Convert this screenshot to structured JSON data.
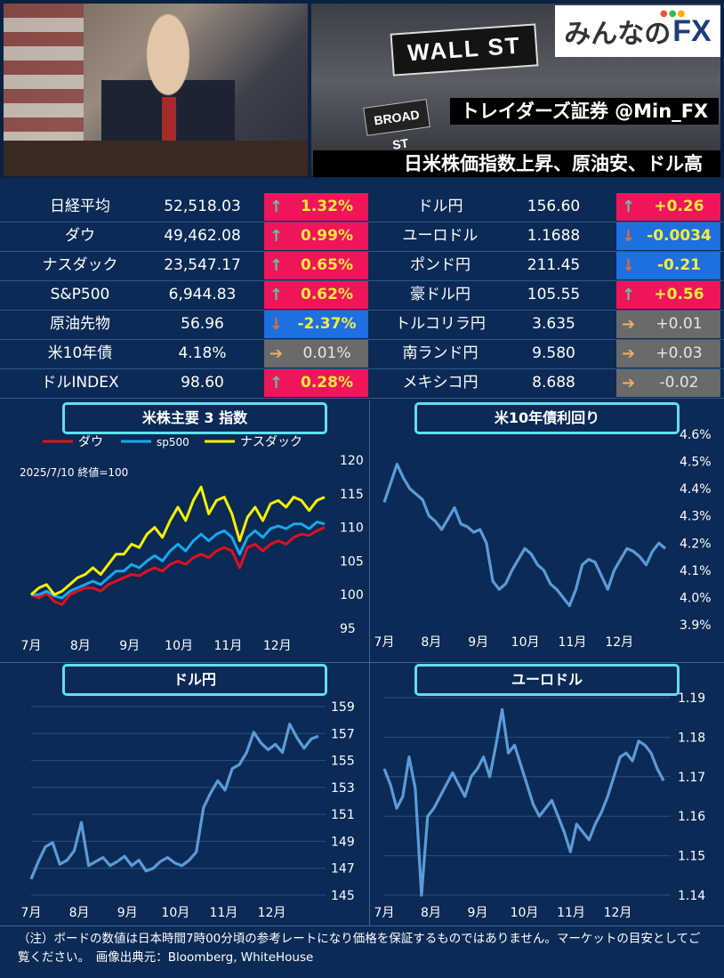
{
  "header": {
    "logo_text": "みんなの",
    "logo_fx": "FX",
    "caption_broker": "トレイダーズ証券 @Min_FX",
    "headline": "日米株価指数上昇、原油安、ドル高",
    "sign_wall": "WALL ST",
    "sign_broad": "BROAD ST"
  },
  "colors": {
    "up": "#f0155a",
    "down": "#1e6fe0",
    "flat": "#6a6a6a",
    "up_text": "#f7ec3a",
    "arrow_up": "#5dc8a0",
    "arrow_down": "#e86a2a",
    "arrow_flat": "#e8b060"
  },
  "left_rows": [
    {
      "name": "日経平均",
      "value": "52,518.03",
      "change": "1.32%",
      "dir": "up"
    },
    {
      "name": "ダウ",
      "value": "49,462.08",
      "change": "0.99%",
      "dir": "up"
    },
    {
      "name": "ナスダック",
      "value": "23,547.17",
      "change": "0.65%",
      "dir": "up"
    },
    {
      "name": "S&P500",
      "value": "6,944.83",
      "change": "0.62%",
      "dir": "up"
    },
    {
      "name": "原油先物",
      "value": "56.96",
      "change": "-2.37%",
      "dir": "down"
    },
    {
      "name": "米10年債",
      "value": "4.18%",
      "change": "0.01%",
      "dir": "flat"
    },
    {
      "name": "ドルINDEX",
      "value": "98.60",
      "change": "0.28%",
      "dir": "up"
    }
  ],
  "right_rows": [
    {
      "name": "ドル円",
      "value": "156.60",
      "change": "+0.26",
      "dir": "up"
    },
    {
      "name": "ユーロドル",
      "value": "1.1688",
      "change": "-0.0034",
      "dir": "down"
    },
    {
      "name": "ポンド円",
      "value": "211.45",
      "change": "-0.21",
      "dir": "down"
    },
    {
      "name": "豪ドル円",
      "value": "105.55",
      "change": "+0.56",
      "dir": "up"
    },
    {
      "name": "トルコリラ円",
      "value": "3.635",
      "change": "+0.01",
      "dir": "flat"
    },
    {
      "name": "南ランド円",
      "value": "9.580",
      "change": "+0.03",
      "dir": "flat"
    },
    {
      "name": "メキシコ円",
      "value": "8.688",
      "change": "-0.02",
      "dir": "flat"
    }
  ],
  "footer_note": "（注）ボードの数値は日本時間7時00分頃の参考レートになり価格を保証するものではありません。マーケットの目安としてご覧ください。　画像出典元：Bloomberg, WhiteHouse",
  "chart_data": [
    {
      "type": "line",
      "title": "米株主要 3 指数",
      "annotation": "2025/7/10 終値=100",
      "x_labels": [
        "7月",
        "8月",
        "9月",
        "10月",
        "11月",
        "12月"
      ],
      "ylim": [
        95,
        120
      ],
      "yticks": [
        95,
        100,
        105,
        110,
        115,
        120
      ],
      "legend_position": "top",
      "series": [
        {
          "name": "ダウ",
          "color": "#e0101e",
          "values": [
            100,
            99.5,
            100.2,
            99,
            98.5,
            100,
            100.5,
            101,
            101,
            100.5,
            101.5,
            102,
            102.5,
            103,
            102.8,
            103.5,
            104,
            103.5,
            104.5,
            105,
            104.5,
            105.5,
            106,
            105.5,
            106.5,
            107,
            106.5,
            104,
            107,
            107.5,
            106.5,
            107.5,
            108,
            107.5,
            108.5,
            109,
            108.8,
            109.5,
            110
          ]
        },
        {
          "name": "sp500",
          "color": "#18a8f0",
          "values": [
            100,
            100,
            100.5,
            99.8,
            99.5,
            100.5,
            101,
            101.5,
            102,
            101.5,
            102.5,
            103.5,
            103.5,
            104.5,
            104,
            105,
            105.8,
            105,
            106.5,
            107.5,
            106.5,
            108,
            109,
            108,
            109,
            109.5,
            108.5,
            106,
            108.5,
            109.5,
            108.5,
            109.8,
            110.2,
            109.8,
            110.5,
            110.5,
            109.8,
            110.8,
            110.5
          ]
        },
        {
          "name": "ナスダック",
          "color": "#f8f000",
          "values": [
            100,
            101,
            101.5,
            100,
            100.5,
            101.5,
            102.5,
            103,
            104,
            103,
            104.5,
            106,
            106,
            107.5,
            107,
            109,
            110,
            108.5,
            111,
            113,
            111,
            114,
            116,
            112,
            114,
            114.5,
            112,
            108,
            111.5,
            113,
            111,
            113.5,
            114,
            113,
            114.5,
            114,
            112.5,
            114,
            114.5
          ]
        }
      ]
    },
    {
      "type": "line",
      "title": "米10年債利回り",
      "x_labels": [
        "7月",
        "8月",
        "9月",
        "10月",
        "11月",
        "12月"
      ],
      "ylim": [
        3.9,
        4.6
      ],
      "yticks": [
        "4.6%",
        "4.5%",
        "4.4%",
        "4.3%",
        "4.2%",
        "4.1%",
        "4.0%",
        "3.9%"
      ],
      "series": [
        {
          "name": "",
          "color": "#5b9bd9",
          "values": [
            4.35,
            4.42,
            4.49,
            4.44,
            4.4,
            4.38,
            4.36,
            4.3,
            4.28,
            4.25,
            4.29,
            4.33,
            4.27,
            4.26,
            4.24,
            4.25,
            4.2,
            4.06,
            4.03,
            4.05,
            4.1,
            4.14,
            4.18,
            4.16,
            4.12,
            4.1,
            4.05,
            4.03,
            4.0,
            3.97,
            4.03,
            4.12,
            4.14,
            4.13,
            4.08,
            4.03,
            4.1,
            4.14,
            4.18,
            4.17,
            4.15,
            4.12,
            4.17,
            4.2,
            4.18
          ]
        }
      ]
    },
    {
      "type": "line",
      "title": "ドル円",
      "x_labels": [
        "7月",
        "8月",
        "9月",
        "10月",
        "11月",
        "12月"
      ],
      "ylim": [
        145,
        159
      ],
      "yticks": [
        159,
        157,
        155,
        153,
        151,
        149,
        147,
        145
      ],
      "series": [
        {
          "name": "",
          "color": "#5b9bd9",
          "values": [
            146.2,
            147.5,
            148.6,
            148.9,
            147.3,
            147.6,
            148.3,
            150.4,
            147.2,
            147.5,
            147.8,
            147.2,
            147.5,
            147.9,
            147.2,
            147.6,
            146.8,
            147.0,
            147.5,
            147.8,
            147.4,
            147.2,
            147.6,
            148.2,
            151.5,
            152.6,
            153.5,
            152.8,
            154.4,
            154.7,
            155.6,
            157.1,
            156.3,
            155.8,
            156.2,
            155.6,
            157.7,
            156.7,
            155.9,
            156.6,
            156.8
          ]
        }
      ]
    },
    {
      "type": "line",
      "title": "ユーロドル",
      "x_labels": [
        "7月",
        "8月",
        "9月",
        "10月",
        "11月",
        "12月"
      ],
      "ylim": [
        1.14,
        1.19
      ],
      "yticks": [
        1.19,
        1.18,
        1.17,
        1.16,
        1.15,
        1.14
      ],
      "series": [
        {
          "name": "",
          "color": "#5b9bd9",
          "values": [
            1.172,
            1.168,
            1.162,
            1.165,
            1.175,
            1.167,
            1.14,
            1.16,
            1.162,
            1.165,
            1.168,
            1.171,
            1.168,
            1.165,
            1.17,
            1.172,
            1.175,
            1.17,
            1.178,
            1.187,
            1.176,
            1.178,
            1.173,
            1.168,
            1.163,
            1.16,
            1.162,
            1.164,
            1.16,
            1.156,
            1.151,
            1.158,
            1.156,
            1.154,
            1.158,
            1.161,
            1.165,
            1.17,
            1.175,
            1.176,
            1.174,
            1.179,
            1.178,
            1.176,
            1.172,
            1.169
          ]
        }
      ]
    }
  ]
}
